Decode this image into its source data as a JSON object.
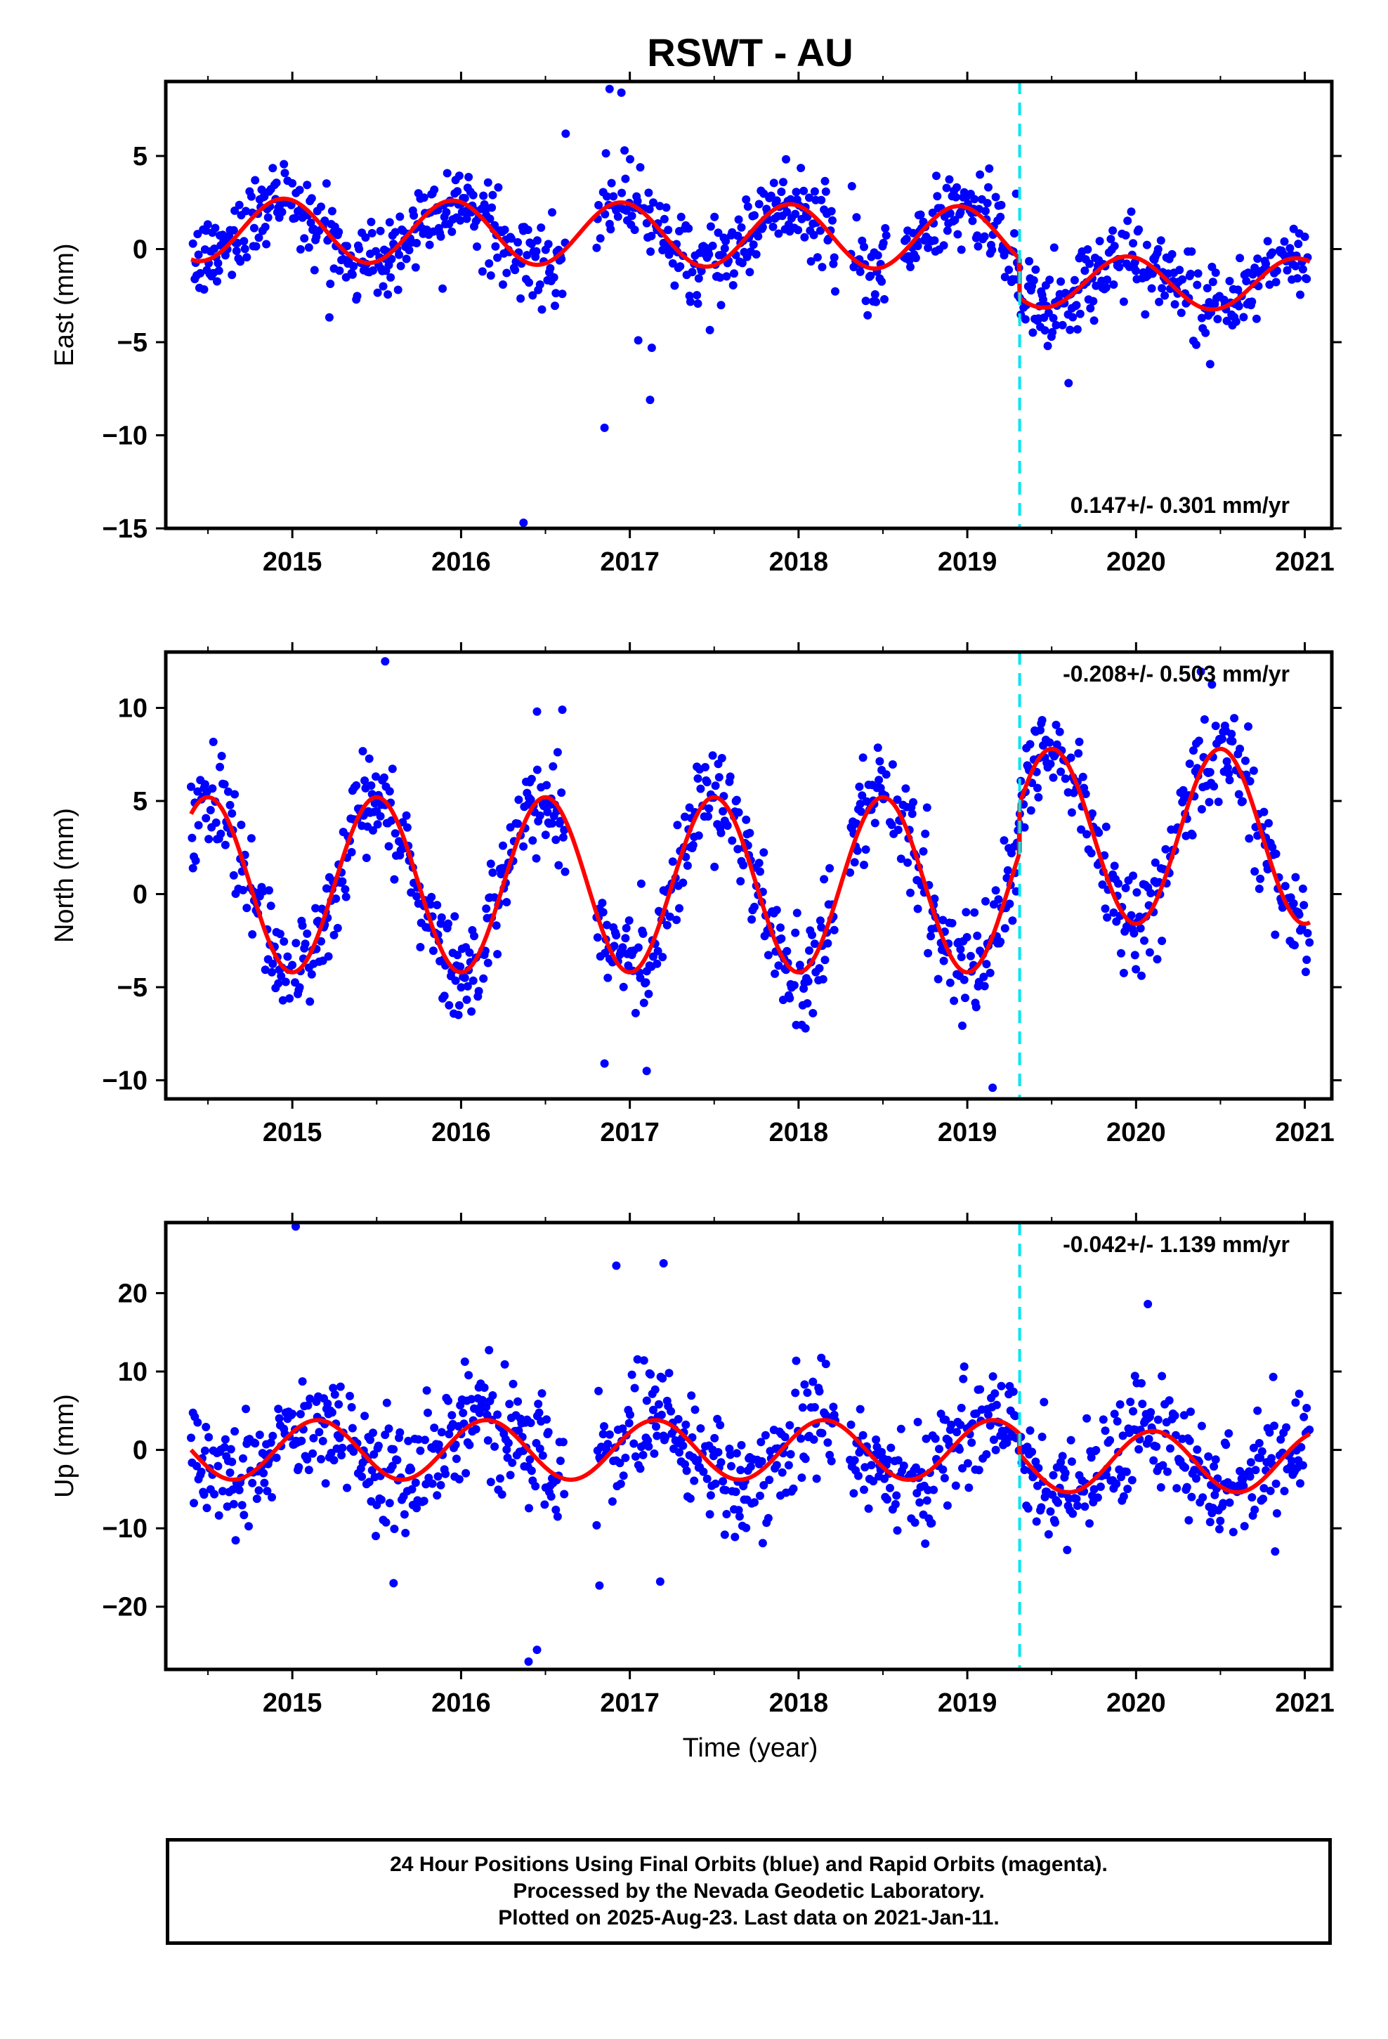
{
  "title": "RSWT - AU",
  "x_axis_label": "Time (year)",
  "colors": {
    "points": "#0000ff",
    "fit": "#ff0000",
    "break_line": "#00e5ee",
    "frame": "#000000"
  },
  "caption": {
    "line1": "24 Hour Positions Using Final Orbits (blue) and Rapid Orbits (magenta).",
    "line2": "Processed by the Nevada Geodetic Laboratory.",
    "line3": "Plotted on 2025-Aug-23. Last data on 2021-Jan-11."
  },
  "chart_data": [
    {
      "type": "scatter",
      "name": "east",
      "ylabel": "East (mm)",
      "rate_label": "0.147+/- 0.301 mm/yr",
      "rate_position": "bottom-right",
      "xlim": [
        2014.25,
        2021.16
      ],
      "ylim": [
        -15,
        9
      ],
      "x_ticks": [
        2015,
        2016,
        2017,
        2018,
        2019,
        2020,
        2021
      ],
      "y_ticks": [
        5,
        0,
        -5,
        -10,
        -15
      ],
      "y_tick_labels": [
        "5",
        "0",
        "−5",
        "−10",
        "−15"
      ],
      "break_epoch": 2019.31,
      "data_start": 2014.4,
      "data_end": 2021.03,
      "fit": {
        "before_break": {
          "offset": 0.7,
          "trend": -0.1,
          "amp1": 1.7,
          "phase1_peak": 2014.95,
          "amp2": 0.0
        },
        "after_break": {
          "offset": -1.6,
          "trend": -0.1,
          "amp1": 1.4,
          "phase1_peak": 2019.95,
          "amp2": 0.0
        }
      },
      "scatter_sd": 1.1,
      "gaps": [
        [
          2016.62,
          2016.8
        ],
        [
          2018.22,
          2018.3
        ],
        [
          2018.52,
          2018.62
        ]
      ],
      "outliers": [
        [
          2016.85,
          -9.6
        ],
        [
          2016.37,
          -14.7
        ],
        [
          2017.12,
          -8.1
        ],
        [
          2016.88,
          8.6
        ],
        [
          2016.95,
          8.4
        ],
        [
          2016.62,
          6.2
        ],
        [
          2017.05,
          -4.9
        ],
        [
          2017.13,
          -5.3
        ],
        [
          2019.6,
          -7.2
        ]
      ]
    },
    {
      "type": "scatter",
      "name": "north",
      "ylabel": "North (mm)",
      "rate_label": "-0.208+/- 0.503 mm/yr",
      "rate_position": "top-right",
      "xlim": [
        2014.25,
        2021.16
      ],
      "ylim": [
        -11,
        13
      ],
      "x_ticks": [
        2015,
        2016,
        2017,
        2018,
        2019,
        2020,
        2021
      ],
      "y_ticks": [
        10,
        5,
        0,
        -5,
        -10
      ],
      "y_tick_labels": [
        "10",
        "5",
        "0",
        "−5",
        "−10"
      ],
      "break_epoch": 2019.31,
      "data_start": 2014.4,
      "data_end": 2021.03,
      "fit": {
        "before_break": {
          "offset": 0.5,
          "trend": 0.0,
          "amp1": 4.7,
          "phase1_peak": 2014.5,
          "amp2": 0.0
        },
        "after_break": {
          "offset": 3.1,
          "trend": 0.0,
          "amp1": 4.7,
          "phase1_peak": 2019.5,
          "amp2": 0.0
        }
      },
      "scatter_sd": 1.4,
      "gaps": [
        [
          2016.62,
          2016.8
        ],
        [
          2018.22,
          2018.3
        ]
      ],
      "outliers": [
        [
          2015.55,
          12.5
        ],
        [
          2016.6,
          9.9
        ],
        [
          2016.45,
          9.8
        ],
        [
          2019.15,
          -10.4
        ],
        [
          2017.1,
          -9.5
        ],
        [
          2016.85,
          -9.1
        ]
      ]
    },
    {
      "type": "scatter",
      "name": "up",
      "ylabel": "Up (mm)",
      "rate_label": "-0.042+/- 1.139 mm/yr",
      "rate_position": "top-right",
      "xlim": [
        2014.25,
        2021.16
      ],
      "ylim": [
        -28,
        29
      ],
      "x_ticks": [
        2015,
        2016,
        2017,
        2018,
        2019,
        2020,
        2021
      ],
      "y_ticks": [
        20,
        10,
        0,
        -10,
        -20
      ],
      "y_tick_labels": [
        "20",
        "10",
        "0",
        "−10",
        "−20"
      ],
      "break_epoch": 2019.31,
      "data_start": 2014.4,
      "data_end": 2021.03,
      "fit": {
        "before_break": {
          "offset": 0.0,
          "trend": 0.0,
          "amp1": 3.8,
          "phase1_peak": 2015.15,
          "amp2": 0.0
        },
        "after_break": {
          "offset": -1.5,
          "trend": 0.0,
          "amp1": 3.9,
          "phase1_peak": 2020.1,
          "amp2": 0.0
        }
      },
      "scatter_sd": 3.6,
      "gaps": [
        [
          2016.62,
          2016.8
        ],
        [
          2018.22,
          2018.3
        ]
      ],
      "outliers": [
        [
          2015.02,
          28.5
        ],
        [
          2016.92,
          23.5
        ],
        [
          2017.2,
          23.8
        ],
        [
          2016.4,
          -27.0
        ],
        [
          2016.45,
          -25.5
        ],
        [
          2016.82,
          -17.3
        ],
        [
          2017.18,
          -16.8
        ],
        [
          2015.6,
          -17.0
        ],
        [
          2020.07,
          18.6
        ]
      ]
    }
  ]
}
